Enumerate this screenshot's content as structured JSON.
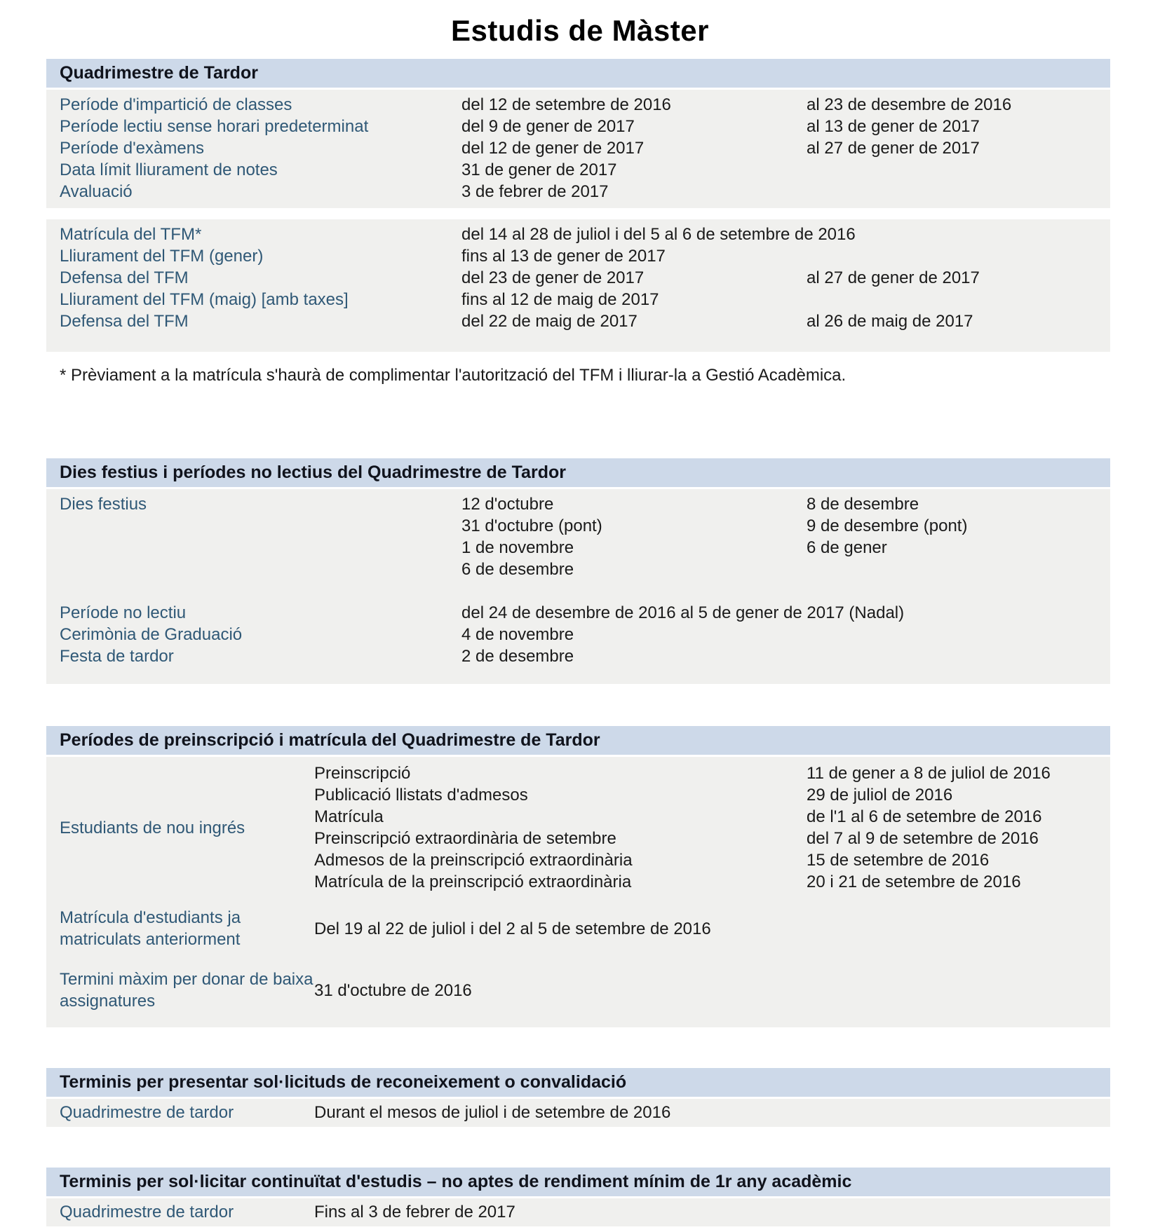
{
  "page": {
    "title": "Estudis de Màster"
  },
  "colors": {
    "section_header_bg": "#cdd9e9",
    "table_bg": "#f0f0ee",
    "label_blue": "#2f5876",
    "text": "#1a1a1a"
  },
  "sec1": {
    "header": "Quadrimestre de Tardor",
    "rows": [
      {
        "label": "Període d'impartició de classes",
        "from": "del 12 de setembre de 2016",
        "to": "al 23 de desembre de 2016"
      },
      {
        "label": "Període lectiu sense horari predeterminat",
        "from": "del 9 de gener de 2017",
        "to": "al 13 de gener de 2017"
      },
      {
        "label": "Període d'exàmens",
        "from": "del 12 de gener de 2017",
        "to": "al 27 de gener de 2017"
      },
      {
        "label": "Data límit lliurament de notes",
        "from": "31 de gener de 2017",
        "to": ""
      },
      {
        "label": "Avaluació",
        "from": "3 de febrer de 2017",
        "to": ""
      }
    ],
    "tfm_rows": [
      {
        "label": "Matrícula del TFM*",
        "from": "del 14 al 28 de juliol i del 5 al 6 de setembre de 2016",
        "to": ""
      },
      {
        "label": "Lliurament del TFM (gener)",
        "from": "fins al 13 de gener de 2017",
        "to": ""
      },
      {
        "label": "Defensa del TFM",
        "from": "del 23 de gener de 2017",
        "to": "al 27 de gener de 2017"
      },
      {
        "label": "Lliurament del TFM (maig) [amb taxes]",
        "from": "fins al 12 de maig de 2017",
        "to": ""
      },
      {
        "label": "Defensa del TFM",
        "from": "del 22 de maig de 2017",
        "to": "al 26 de maig de 2017"
      }
    ]
  },
  "footnote": "* Prèviament a la matrícula s'haurà de complimentar l'autorització del TFM i lliurar-la a Gestió Acadèmica.",
  "sec2": {
    "header": "Dies festius i períodes no lectius del Quadrimestre de Tardor",
    "festius_label": "Dies festius",
    "festius_col1": [
      "12 d'octubre",
      "31 d'octubre (pont)",
      "1 de novembre",
      "6 de desembre"
    ],
    "festius_col2": [
      "8 de desembre",
      "9 de desembre (pont)",
      "6 de gener"
    ],
    "rows": [
      {
        "label": "Període no lectiu",
        "value": "del 24 de desembre de 2016 al 5 de gener de 2017 (Nadal)"
      },
      {
        "label": "Cerimònia de Graduació",
        "value": "4 de novembre"
      },
      {
        "label": "Festa de tardor",
        "value": "2 de desembre"
      }
    ]
  },
  "sec3": {
    "header": "Períodes de preinscripció i matrícula del Quadrimestre de Tardor",
    "nou_ingres_label": "Estudiants de nou ingrés",
    "nou_ingres_rows": [
      {
        "label": "Preinscripció",
        "value": "11 de gener a 8 de juliol de 2016"
      },
      {
        "label": "Publicació llistats d'admesos",
        "value": "29 de juliol de 2016"
      },
      {
        "label": "Matrícula",
        "value": "de l'1 al 6 de setembre de 2016"
      },
      {
        "label": "Preinscripció extraordinària de setembre",
        "value": "del 7 al 9 de setembre de 2016"
      },
      {
        "label": "Admesos de la preinscripció extraordinària",
        "value": "15 de setembre de 2016"
      },
      {
        "label": "Matrícula de la preinscripció extraordinària",
        "value": "20 i 21 de setembre de 2016"
      }
    ],
    "rows": [
      {
        "label": "Matrícula d'estudiants ja matriculats anteriorment",
        "value": "Del 19 al 22 de juliol i del 2 al 5 de setembre de 2016"
      },
      {
        "label": "Termini màxim per donar de baixa assignatures",
        "value": "31 d'octubre de 2016"
      }
    ]
  },
  "sec4": {
    "header": "Terminis per presentar sol·licituds de reconeixement o convalidació",
    "row": {
      "label": "Quadrimestre de tardor",
      "value": "Durant el mesos de juliol i de setembre de 2016"
    }
  },
  "sec5": {
    "header": "Terminis per sol·licitar continuïtat d'estudis – no aptes de rendiment mínim de 1r any acadèmic",
    "row": {
      "label": "Quadrimestre de tardor",
      "value": "Fins al 3 de febrer de 2017"
    }
  }
}
